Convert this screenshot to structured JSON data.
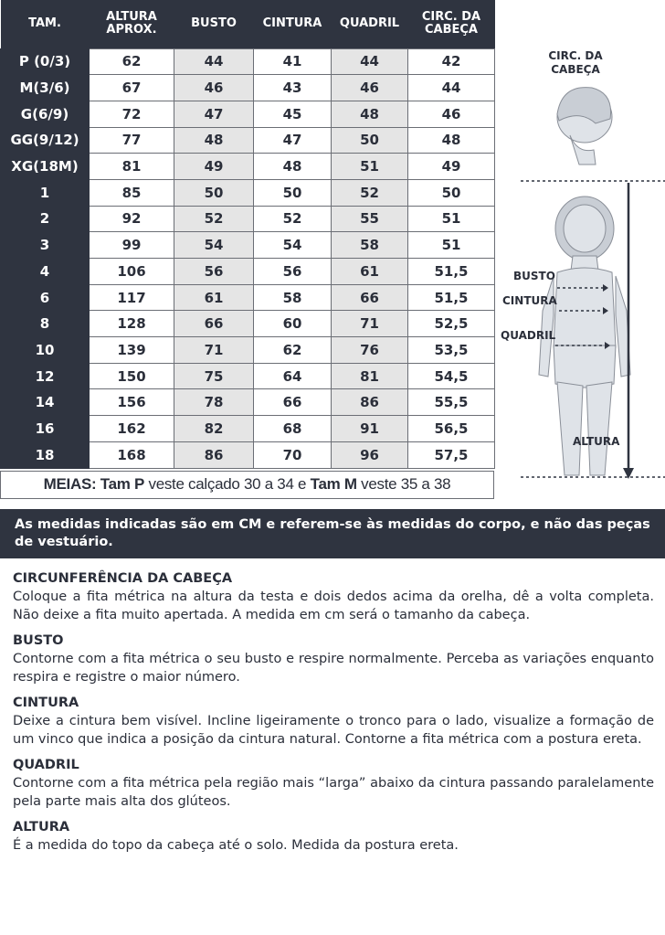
{
  "table": {
    "headers": [
      "TAM.",
      "ALTURA APROX.",
      "BUSTO",
      "CINTURA",
      "QUADRIL",
      "CIRC. DA CABEÇA"
    ],
    "rows": [
      [
        "P (0/3)",
        "62",
        "44",
        "41",
        "44",
        "42"
      ],
      [
        "M(3/6)",
        "67",
        "46",
        "43",
        "46",
        "44"
      ],
      [
        "G(6/9)",
        "72",
        "47",
        "45",
        "48",
        "46"
      ],
      [
        "GG(9/12)",
        "77",
        "48",
        "47",
        "50",
        "48"
      ],
      [
        "XG(18M)",
        "81",
        "49",
        "48",
        "51",
        "49"
      ],
      [
        "1",
        "85",
        "50",
        "50",
        "52",
        "50"
      ],
      [
        "2",
        "92",
        "52",
        "52",
        "55",
        "51"
      ],
      [
        "3",
        "99",
        "54",
        "54",
        "58",
        "51"
      ],
      [
        "4",
        "106",
        "56",
        "56",
        "61",
        "51,5"
      ],
      [
        "6",
        "117",
        "61",
        "58",
        "66",
        "51,5"
      ],
      [
        "8",
        "128",
        "66",
        "60",
        "71",
        "52,5"
      ],
      [
        "10",
        "139",
        "71",
        "62",
        "76",
        "53,5"
      ],
      [
        "12",
        "150",
        "75",
        "64",
        "81",
        "54,5"
      ],
      [
        "14",
        "156",
        "78",
        "66",
        "86",
        "55,5"
      ],
      [
        "16",
        "162",
        "82",
        "68",
        "91",
        "56,5"
      ],
      [
        "18",
        "168",
        "86",
        "70",
        "96",
        "57,5"
      ]
    ]
  },
  "meias": {
    "label": "MEIAS:",
    "p_bold": "Tam P",
    "p_text": "veste calçado 30 a 34",
    "and": "e",
    "m_bold": "Tam M",
    "m_text": "veste 35 a 38"
  },
  "banner": "As medidas indicadas são em CM e referem-se às medidas do corpo, e não das peças de vestuário.",
  "figure": {
    "head_label": "CIRC. DA CABEÇA",
    "busto": "BUSTO",
    "cintura": "CINTURA",
    "quadril": "QUADRIL",
    "altura": "ALTURA"
  },
  "guide": [
    {
      "title": "CIRCUNFERÊNCIA DA CABEÇA",
      "text": "Coloque a fita métrica na altura da testa e dois dedos acima da orelha, dê a volta completa. Não deixe a fita muito apertada. A medida em cm será o tamanho da cabeça."
    },
    {
      "title": "BUSTO",
      "text": "Contorne com a fita métrica o seu busto e respire normalmente. Perceba as variações enquanto respira e registre o maior número."
    },
    {
      "title": "CINTURA",
      "text": "Deixe a cintura bem visível. Incline ligeiramente o tronco para o lado, visualize a formação de um vinco que indica a posição da cintura natural. Contorne a fita métrica com a postura ereta."
    },
    {
      "title": "QUADRIL",
      "text": "Contorne com a fita métrica pela região mais “larga” abaixo da cintura passando paralelamente pela parte mais alta dos glúteos."
    },
    {
      "title": "ALTURA",
      "text": "É a medida do topo da cabeça até o solo. Medida da postura ereta."
    }
  ],
  "colors": {
    "dark": "#2f3440",
    "shade": "#e5e5e5"
  }
}
